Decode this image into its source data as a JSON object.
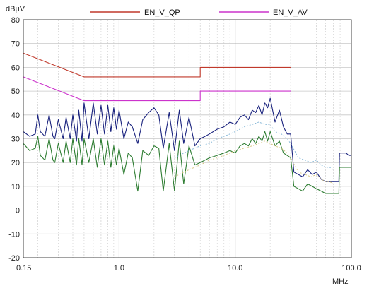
{
  "chart_data": {
    "type": "line",
    "title": "",
    "xlabel": "",
    "ylabel": "",
    "x_unit": "MHz",
    "y_unit": "dBµV",
    "x_scale": "log",
    "xlim": [
      0.15,
      100
    ],
    "ylim": [
      -20,
      80
    ],
    "grid": true,
    "legend_position": "top",
    "x_ticks": [
      {
        "value": 0.15,
        "label": "0.15"
      },
      {
        "value": 1,
        "label": "1.0"
      },
      {
        "value": 10,
        "label": "10.0"
      },
      {
        "value": 100,
        "label": "100.0"
      }
    ],
    "y_ticks": [
      {
        "value": 80,
        "label": "80"
      },
      {
        "value": 70,
        "label": "70"
      },
      {
        "value": 60,
        "label": "60"
      },
      {
        "value": 50,
        "label": "50"
      },
      {
        "value": 40,
        "label": "40"
      },
      {
        "value": 30,
        "label": "30"
      },
      {
        "value": 20,
        "label": "20"
      },
      {
        "value": 10,
        "label": "10"
      },
      {
        "value": 0,
        "label": "0"
      },
      {
        "value": -10,
        "label": "-10"
      },
      {
        "value": -20,
        "label": "-20"
      }
    ],
    "series": [
      {
        "name": "EN_V_QP",
        "color": "#c0392b",
        "x": [
          0.15,
          0.5,
          0.5,
          5,
          5,
          30
        ],
        "y": [
          66,
          56,
          56,
          56,
          60,
          60
        ]
      },
      {
        "name": "EN_V_AV",
        "color": "#cc33cc",
        "x": [
          0.15,
          0.5,
          0.5,
          5,
          5,
          30
        ],
        "y": [
          56,
          46,
          46,
          46,
          50,
          50
        ]
      },
      {
        "color": "#1a237e",
        "x": [
          0.15,
          0.17,
          0.19,
          0.2,
          0.21,
          0.23,
          0.25,
          0.27,
          0.28,
          0.3,
          0.33,
          0.35,
          0.38,
          0.4,
          0.43,
          0.45,
          0.48,
          0.5,
          0.55,
          0.6,
          0.65,
          0.7,
          0.75,
          0.8,
          0.85,
          0.9,
          0.95,
          1.0,
          1.1,
          1.2,
          1.3,
          1.45,
          1.6,
          1.8,
          2.0,
          2.2,
          2.4,
          2.7,
          3.0,
          3.3,
          3.6,
          4.0,
          4.5,
          5.0,
          5.5,
          6.0,
          7.0,
          8.0,
          9.0,
          10.0,
          11.0,
          12.0,
          13.0,
          14.0,
          15.0,
          16.0,
          17.0,
          18.0,
          19.0,
          20.0,
          22.0,
          24.0,
          26.0,
          28.0,
          30.0,
          32.0,
          35.0,
          38.0,
          42.0,
          46.0,
          50.0,
          55.0,
          60.0,
          65.0,
          70.0,
          75.0,
          78.0,
          79.0,
          85.0,
          90.0,
          95.0,
          100.0
        ],
        "y": [
          33,
          31,
          32,
          40,
          33,
          31,
          40,
          31,
          30,
          38,
          30,
          39,
          30,
          40,
          29,
          42,
          29,
          45,
          30,
          45,
          32,
          44,
          32,
          44,
          33,
          43,
          34,
          42,
          30,
          37,
          35,
          28,
          38,
          41,
          43,
          40,
          26,
          41,
          25,
          42,
          28,
          39,
          27,
          30,
          31,
          32,
          34,
          35,
          37,
          36,
          39,
          40,
          38,
          42,
          41,
          44,
          40,
          45,
          43,
          47,
          37,
          42,
          35,
          32,
          32,
          16,
          15,
          14,
          17,
          15,
          16,
          13,
          12,
          12,
          12,
          12,
          12,
          24,
          24,
          24,
          23,
          23
        ]
      },
      {
        "color": "#2e7d32",
        "x": [
          0.15,
          0.17,
          0.19,
          0.2,
          0.21,
          0.23,
          0.25,
          0.27,
          0.28,
          0.3,
          0.33,
          0.35,
          0.38,
          0.4,
          0.43,
          0.45,
          0.48,
          0.5,
          0.55,
          0.6,
          0.65,
          0.7,
          0.75,
          0.8,
          0.85,
          0.9,
          0.95,
          1.0,
          1.1,
          1.2,
          1.3,
          1.45,
          1.6,
          1.8,
          2.0,
          2.2,
          2.4,
          2.7,
          3.0,
          3.3,
          3.6,
          4.0,
          4.5,
          5.0,
          5.5,
          6.0,
          7.0,
          8.0,
          9.0,
          10.0,
          11.0,
          12.0,
          13.0,
          14.0,
          15.0,
          16.0,
          17.0,
          18.0,
          19.0,
          20.0,
          22.0,
          24.0,
          26.0,
          28.0,
          30.0,
          32.0,
          35.0,
          38.0,
          42.0,
          46.0,
          50.0,
          55.0,
          60.0,
          65.0,
          70.0,
          75.0,
          78.0,
          79.0,
          85.0,
          90.0,
          95.0,
          100.0
        ],
        "y": [
          28,
          25,
          26,
          31,
          23,
          21,
          30,
          21,
          20,
          28,
          20,
          29,
          20,
          30,
          19,
          30,
          19,
          30,
          20,
          30,
          18,
          30,
          19,
          29,
          18,
          27,
          19,
          26,
          15,
          24,
          22,
          8,
          25,
          23,
          27,
          26,
          8,
          28,
          8,
          29,
          11,
          27,
          19,
          20,
          21,
          22,
          23,
          24,
          25,
          24,
          27,
          28,
          27,
          30,
          28,
          31,
          29,
          33,
          29,
          33,
          27,
          29,
          24,
          23,
          22,
          10,
          9,
          8,
          11,
          10,
          9,
          8,
          7,
          7,
          7,
          7,
          7,
          18,
          18,
          18,
          18,
          18
        ]
      },
      {
        "color": "#7fb3d5",
        "dashed": true,
        "x": [
          3.0,
          4.0,
          5.0,
          6.0,
          7.0,
          8.0,
          9.0,
          10.0,
          12.0,
          14.0,
          16.0,
          18.0,
          20.0,
          22.0,
          25.0,
          28.0,
          30.0,
          35.0,
          40.0,
          45.0,
          50.0,
          55.0,
          60.0,
          65.0,
          70.0
        ],
        "y": [
          22,
          25,
          27,
          28,
          30,
          31,
          32,
          33,
          35,
          36,
          37,
          36,
          36,
          33,
          32,
          30,
          28,
          22,
          21,
          20,
          21,
          19,
          18,
          18,
          17
        ]
      },
      {
        "color": "#d4c27a",
        "dashed": true,
        "x": [
          3.0,
          4.0,
          5.0,
          6.0,
          7.0,
          8.0,
          9.0,
          10.0,
          12.0,
          14.0,
          16.0,
          18.0,
          20.0,
          22.0,
          25.0,
          28.0,
          30.0,
          35.0,
          40.0,
          45.0,
          50.0,
          55.0,
          60.0,
          65.0,
          70.0
        ],
        "y": [
          14,
          17,
          19,
          21,
          22,
          23,
          24,
          25,
          26,
          27,
          28,
          29,
          28,
          27,
          26,
          24,
          22,
          16,
          15,
          14,
          15,
          13,
          12,
          12,
          11
        ]
      }
    ]
  }
}
